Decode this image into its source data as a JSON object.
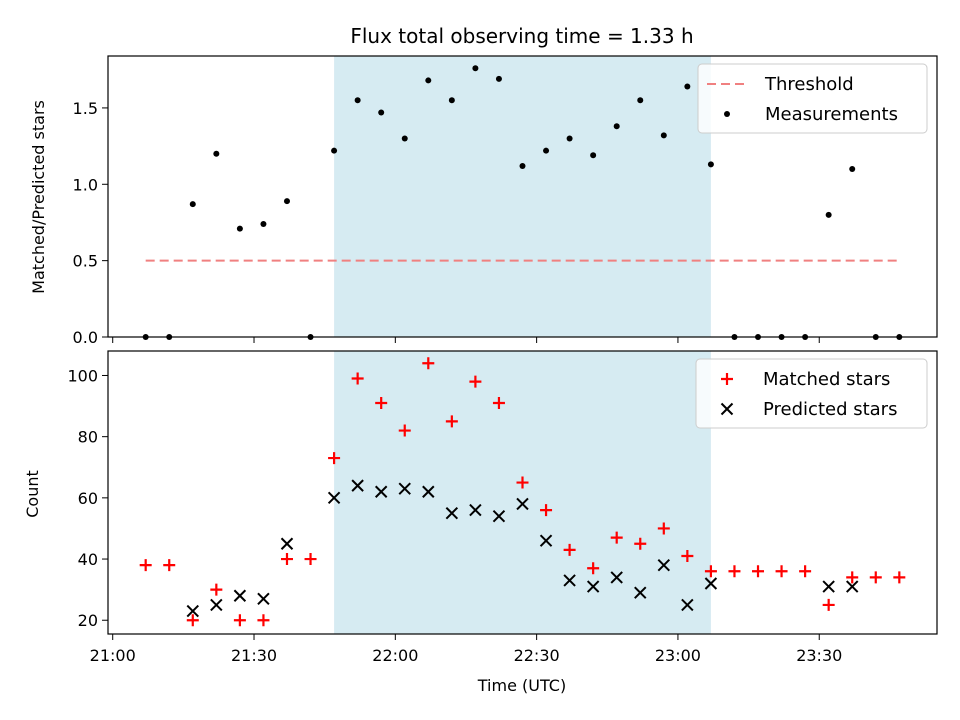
{
  "chart_data": [
    {
      "type": "scatter",
      "title": "Flux total observing time = 1.33 h",
      "xlabel": "",
      "ylabel": "Matched/Predicted stars",
      "ylim": [
        0,
        1.84
      ],
      "yticks": [
        0.0,
        0.5,
        1.0,
        1.5
      ],
      "ytick_labels": [
        "0.0",
        "0.5",
        "1.0",
        "1.5"
      ],
      "legend": {
        "position": "top-right",
        "entries": [
          "Threshold",
          "Measurements"
        ]
      },
      "threshold": {
        "name": "Threshold",
        "y": 0.5,
        "x_range": [
          "21:07",
          "23:47"
        ],
        "color": "#f08080"
      },
      "shaded_interval": [
        "21:47",
        "23:07"
      ],
      "series": [
        {
          "name": "Measurements",
          "color": "#000000",
          "x": [
            "21:07",
            "21:12",
            "21:17",
            "21:22",
            "21:27",
            "21:32",
            "21:37",
            "21:42",
            "21:47",
            "21:52",
            "21:57",
            "22:02",
            "22:07",
            "22:12",
            "22:17",
            "22:22",
            "22:27",
            "22:32",
            "22:37",
            "22:42",
            "22:47",
            "22:52",
            "22:57",
            "23:02",
            "23:07",
            "23:12",
            "23:17",
            "23:22",
            "23:27",
            "23:32",
            "23:37",
            "23:42",
            "23:47"
          ],
          "y": [
            0.0,
            0.0,
            0.87,
            1.2,
            0.71,
            0.74,
            0.89,
            0.0,
            1.22,
            1.55,
            1.47,
            1.3,
            1.68,
            1.55,
            1.76,
            1.69,
            1.12,
            1.22,
            1.3,
            1.19,
            1.38,
            1.55,
            1.32,
            1.64,
            1.13,
            0.0,
            0.0,
            0.0,
            0.0,
            0.8,
            1.1,
            0.0,
            0.0
          ]
        }
      ]
    },
    {
      "type": "scatter",
      "xlabel": "Time (UTC)",
      "ylabel": "Count",
      "ylim": [
        15.5,
        108
      ],
      "yticks": [
        20,
        40,
        60,
        80,
        100
      ],
      "ytick_labels": [
        "20",
        "40",
        "60",
        "80",
        "100"
      ],
      "xlim": [
        "20:59",
        "23:55"
      ],
      "xticks": [
        "21:00",
        "21:30",
        "22:00",
        "22:30",
        "23:00",
        "23:30"
      ],
      "legend": {
        "position": "top-right",
        "entries": [
          "Matched stars",
          "Predicted stars"
        ]
      },
      "shaded_interval": [
        "21:47",
        "23:07"
      ],
      "series": [
        {
          "name": "Matched stars",
          "marker": "plus",
          "color": "#ff0000",
          "x": [
            "21:07",
            "21:12",
            "21:17",
            "21:22",
            "21:27",
            "21:32",
            "21:37",
            "21:42",
            "21:47",
            "21:52",
            "21:57",
            "22:02",
            "22:07",
            "22:12",
            "22:17",
            "22:22",
            "22:27",
            "22:32",
            "22:37",
            "22:42",
            "22:47",
            "22:52",
            "22:57",
            "23:02",
            "23:07",
            "23:12",
            "23:17",
            "23:22",
            "23:27",
            "23:32",
            "23:37",
            "23:42",
            "23:47"
          ],
          "y": [
            38,
            38,
            20,
            30,
            20,
            20,
            40,
            40,
            73,
            99,
            91,
            82,
            104,
            85,
            98,
            91,
            65,
            56,
            43,
            37,
            47,
            45,
            50,
            41,
            36,
            36,
            36,
            36,
            36,
            25,
            34,
            34,
            34
          ]
        },
        {
          "name": "Predicted stars",
          "marker": "x",
          "color": "#000000",
          "x": [
            "21:17",
            "21:22",
            "21:27",
            "21:32",
            "21:37",
            "21:47",
            "21:52",
            "21:57",
            "22:02",
            "22:07",
            "22:12",
            "22:17",
            "22:22",
            "22:27",
            "22:32",
            "22:37",
            "22:42",
            "22:47",
            "22:52",
            "22:57",
            "23:02",
            "23:07",
            "23:32",
            "23:37"
          ],
          "y": [
            23,
            25,
            28,
            27,
            45,
            60,
            64,
            62,
            63,
            62,
            55,
            56,
            54,
            58,
            46,
            33,
            31,
            34,
            29,
            38,
            25,
            32,
            31,
            31
          ]
        }
      ]
    }
  ],
  "colors": {
    "shade": "#add8e6",
    "shade_opacity": 0.5,
    "threshold": "#f08080"
  }
}
